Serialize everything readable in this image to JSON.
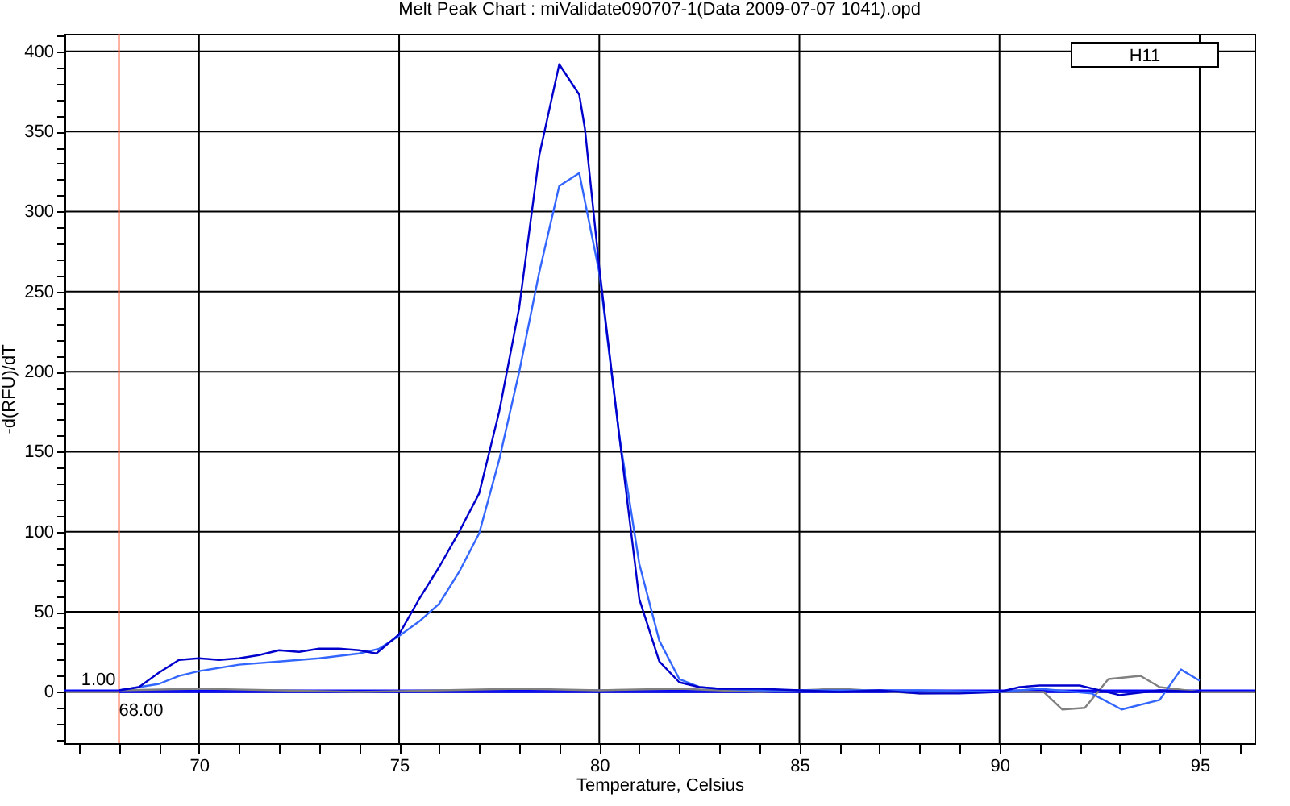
{
  "chart_data": {
    "type": "line",
    "title": "Melt Peak Chart : miValidate090707-1(Data 2009-07-07 1041).opd",
    "xlabel": "Temperature, Celsius",
    "ylabel": "-d(RFU)/dT",
    "xlim": [
      66.64,
      96.37
    ],
    "ylim": [
      -32,
      411
    ],
    "xticks": [
      {
        "value": 67,
        "label": null
      },
      {
        "value": 68,
        "label": null
      },
      {
        "value": 69,
        "label": null
      },
      70,
      {
        "value": 71,
        "label": null
      },
      {
        "value": 72,
        "label": null
      },
      {
        "value": 73,
        "label": null
      },
      {
        "value": 74,
        "label": null
      },
      75,
      {
        "value": 76,
        "label": null
      },
      {
        "value": 77,
        "label": null
      },
      {
        "value": 78,
        "label": null
      },
      {
        "value": 79,
        "label": null
      },
      80,
      {
        "value": 81,
        "label": null
      },
      {
        "value": 82,
        "label": null
      },
      {
        "value": 83,
        "label": null
      },
      {
        "value": 84,
        "label": null
      },
      85,
      {
        "value": 86,
        "label": null
      },
      {
        "value": 87,
        "label": null
      },
      {
        "value": 88,
        "label": null
      },
      {
        "value": 89,
        "label": null
      },
      90,
      {
        "value": 91,
        "label": null
      },
      {
        "value": 92,
        "label": null
      },
      {
        "value": 93,
        "label": null
      },
      {
        "value": 94,
        "label": null
      },
      95,
      {
        "value": 96,
        "label": null
      }
    ],
    "yticks": [
      {
        "value": -30,
        "label": null
      },
      {
        "value": -20,
        "label": null
      },
      {
        "value": -10,
        "label": null
      },
      0,
      {
        "value": 10,
        "label": null
      },
      {
        "value": 20,
        "label": null
      },
      {
        "value": 30,
        "label": null
      },
      {
        "value": 40,
        "label": null
      },
      50,
      {
        "value": 60,
        "label": null
      },
      {
        "value": 70,
        "label": null
      },
      {
        "value": 80,
        "label": null
      },
      {
        "value": 90,
        "label": null
      },
      100,
      {
        "value": 110,
        "label": null
      },
      {
        "value": 120,
        "label": null
      },
      {
        "value": 130,
        "label": null
      },
      {
        "value": 140,
        "label": null
      },
      150,
      {
        "value": 160,
        "label": null
      },
      {
        "value": 170,
        "label": null
      },
      {
        "value": 180,
        "label": null
      },
      {
        "value": 190,
        "label": null
      },
      200,
      {
        "value": 210,
        "label": null
      },
      {
        "value": 220,
        "label": null
      },
      {
        "value": 230,
        "label": null
      },
      {
        "value": 240,
        "label": null
      },
      250,
      {
        "value": 260,
        "label": null
      },
      {
        "value": 270,
        "label": null
      },
      {
        "value": 280,
        "label": null
      },
      {
        "value": 290,
        "label": null
      },
      300,
      {
        "value": 310,
        "label": null
      },
      {
        "value": 320,
        "label": null
      },
      {
        "value": 330,
        "label": null
      },
      {
        "value": 340,
        "label": null
      },
      350,
      {
        "value": 360,
        "label": null
      },
      {
        "value": 370,
        "label": null
      },
      {
        "value": 380,
        "label": null
      },
      {
        "value": 390,
        "label": null
      },
      400,
      {
        "value": 410,
        "label": null
      }
    ],
    "grid": true,
    "marker": "none",
    "line_style": "solid",
    "series": [
      {
        "color": "#0000ff",
        "x": [
          68,
          69,
          70,
          71,
          72,
          73,
          74,
          75,
          76,
          77,
          78,
          79,
          80,
          81,
          82,
          83,
          84,
          85,
          86,
          87,
          88,
          89,
          90,
          91,
          92,
          93,
          94,
          95
        ],
        "values": [
          0,
          0,
          0,
          0,
          0,
          0,
          0,
          0,
          0,
          0,
          0,
          0,
          0,
          0,
          0,
          0,
          0,
          0,
          0,
          0,
          0,
          0,
          0,
          0,
          0,
          0,
          0,
          0
        ]
      },
      {
        "color": "#808080",
        "x": [
          68,
          70,
          72,
          74,
          76,
          78,
          80,
          82,
          84,
          86,
          88,
          90,
          91.1,
          91.57,
          92.13,
          92.72,
          93.52,
          94,
          95
        ],
        "values": [
          1,
          2,
          1,
          0,
          1,
          2,
          1,
          2,
          0,
          2,
          -1,
          0,
          0,
          -11,
          -10,
          8,
          10,
          3,
          0
        ]
      },
      {
        "color": "#3366ff",
        "x": [
          68,
          69,
          69.5,
          70,
          71,
          72,
          73,
          74,
          74.5,
          75,
          75.5,
          76,
          76.5,
          77,
          77.5,
          78,
          78.5,
          79,
          79.5,
          80,
          80.5,
          81,
          81.5,
          82,
          82.5,
          83,
          84,
          86,
          88,
          90,
          91,
          92.3,
          93.05,
          94,
          94.53,
          95
        ],
        "values": [
          1,
          5,
          10,
          13,
          17,
          19,
          21,
          24,
          27,
          35,
          44,
          55,
          75,
          99,
          145,
          200,
          262,
          316,
          324,
          262,
          160,
          80,
          32,
          8,
          3,
          2,
          1,
          1,
          1,
          0,
          2,
          -1,
          -11,
          -5,
          14,
          7
        ]
      },
      {
        "color": "#0000cc",
        "x": [
          68,
          68.5,
          69,
          69.5,
          70,
          70.5,
          71,
          71.5,
          72,
          72.5,
          73,
          73.5,
          74,
          74.43,
          75,
          75.5,
          76,
          76.5,
          77,
          77.5,
          78,
          78.5,
          79,
          79.5,
          79.64,
          80,
          80.5,
          81,
          81.5,
          82,
          82.5,
          83,
          84,
          85,
          86,
          87,
          88,
          89,
          90,
          90.5,
          91,
          92,
          92.5,
          93,
          94,
          95
        ],
        "values": [
          1,
          3,
          12,
          20,
          21,
          20,
          21,
          23,
          26,
          25,
          27,
          27,
          26,
          24,
          36,
          58,
          78,
          100,
          124,
          175,
          240,
          335,
          392,
          373,
          352,
          265,
          160,
          58,
          19,
          6,
          3,
          2,
          2,
          1,
          0,
          1,
          -1,
          -1,
          0,
          3,
          4,
          4,
          1,
          -2,
          1,
          0
        ]
      }
    ],
    "ref_lines": [
      {
        "axis": "x",
        "value": 68,
        "label": "68.00",
        "color": "#ff6644"
      },
      {
        "axis": "y",
        "value": 1,
        "label": "1.00",
        "color": "#0000ff"
      }
    ],
    "annotations": [
      "H11"
    ]
  }
}
